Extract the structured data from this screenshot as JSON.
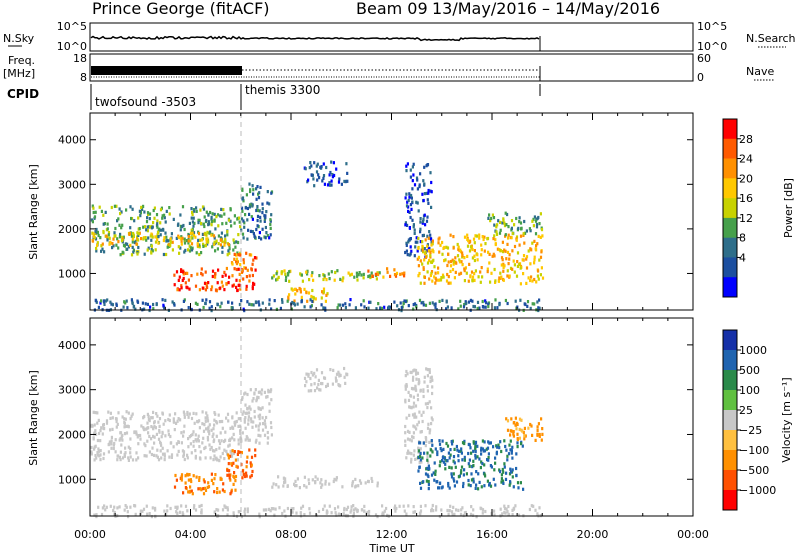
{
  "header": {
    "station": "Prince George (fitACF)",
    "beam": "Beam 09",
    "date_range": "13/May/2016 – 14/May/2016"
  },
  "noise_panel": {
    "left_label": "N.Sky",
    "right_label": "N.Search",
    "left_ticks": [
      "10^5",
      "10^0"
    ],
    "right_ticks": [
      "10^5",
      "10^0"
    ]
  },
  "freq_panel": {
    "left_label_1": "Freq.",
    "left_label_2": "[MHz]",
    "right_label": "Nave",
    "left_ticks": [
      "18",
      "8"
    ],
    "right_ticks": [
      "60",
      "0"
    ]
  },
  "cpid_panel": {
    "label": "CPID",
    "segments": [
      {
        "name": "twofsound -3503",
        "start_hour": 0,
        "end_hour": 6
      },
      {
        "name": "themis 3300",
        "start_hour": 6,
        "end_hour": 18
      }
    ]
  },
  "power_colorbar": {
    "label": "Power [dB]",
    "ticks": [
      "28",
      "24",
      "20",
      "16",
      "12",
      "8",
      "4"
    ],
    "colors": [
      "#ff0000",
      "#ff5a00",
      "#ff9000",
      "#ffc800",
      "#c8d200",
      "#46a04b",
      "#2e6e8a",
      "#1c4fa0",
      "#0000ff"
    ]
  },
  "velocity_colorbar": {
    "label": "Velocity [m s⁻¹]",
    "ticks": [
      "1000",
      "500",
      "100",
      "25",
      "−25",
      "−100",
      "−500",
      "−1000"
    ],
    "colors": [
      "#1530a8",
      "#1f64b0",
      "#2a8a4a",
      "#60c040",
      "#c8c8c8",
      "#ffc040",
      "#ff9000",
      "#ff5000",
      "#ff0000"
    ]
  },
  "chart_data": {
    "type": "heatmap",
    "xlabel": "Time UT",
    "ylabel": "Slant Range [km]",
    "x_ticks": [
      "00:00",
      "04:00",
      "08:00",
      "12:00",
      "16:00",
      "20:00",
      "00:00"
    ],
    "y_ticks": [
      "1000",
      "2000",
      "3000",
      "4000"
    ],
    "xlim_hours": [
      0,
      24
    ],
    "ylim_km": [
      180,
      4600
    ],
    "data_end_hour": 18,
    "mode_change_hour": 6,
    "power_regions": [
      {
        "t0": 0.0,
        "t1": 6.0,
        "r0": 1450,
        "r1": 2550,
        "db": 12
      },
      {
        "t0": 0.0,
        "t1": 5.5,
        "r0": 1650,
        "r1": 1950,
        "db": 20
      },
      {
        "t0": 3.3,
        "t1": 6.6,
        "r0": 650,
        "r1": 1150,
        "db": 28
      },
      {
        "t0": 5.4,
        "t1": 6.6,
        "r0": 1100,
        "r1": 1500,
        "db": 24
      },
      {
        "t0": 6.0,
        "t1": 7.2,
        "r0": 1800,
        "r1": 3050,
        "db": 8
      },
      {
        "t0": 7.2,
        "t1": 11.5,
        "r0": 850,
        "r1": 1100,
        "db": 16
      },
      {
        "t0": 7.8,
        "t1": 9.5,
        "r0": 400,
        "r1": 700,
        "db": 20
      },
      {
        "t0": 8.5,
        "t1": 10.2,
        "r0": 3000,
        "r1": 3550,
        "db": 6
      },
      {
        "t0": 11.0,
        "t1": 12.5,
        "r0": 950,
        "r1": 1150,
        "db": 24
      },
      {
        "t0": 12.5,
        "t1": 13.6,
        "r0": 1400,
        "r1": 3500,
        "db": 6
      },
      {
        "t0": 13.0,
        "t1": 18.0,
        "r0": 800,
        "r1": 1900,
        "db": 20
      },
      {
        "t0": 15.8,
        "t1": 18.0,
        "r0": 1900,
        "r1": 2400,
        "db": 12
      },
      {
        "t0": 0.0,
        "t1": 18.0,
        "r0": 200,
        "r1": 450,
        "db": 8
      }
    ],
    "velocity_regions": [
      {
        "t0": 0.0,
        "t1": 6.0,
        "r0": 1450,
        "r1": 2550,
        "v": 0
      },
      {
        "t0": 3.3,
        "t1": 5.8,
        "r0": 700,
        "r1": 1150,
        "v": -300
      },
      {
        "t0": 5.4,
        "t1": 6.6,
        "r0": 1050,
        "r1": 1700,
        "v": -500
      },
      {
        "t0": 6.0,
        "t1": 7.2,
        "r0": 1800,
        "r1": 3050,
        "v": 0
      },
      {
        "t0": 7.2,
        "t1": 11.5,
        "r0": 850,
        "r1": 1100,
        "v": 0
      },
      {
        "t0": 8.5,
        "t1": 10.2,
        "r0": 3000,
        "r1": 3550,
        "v": 0
      },
      {
        "t0": 12.5,
        "t1": 13.6,
        "r0": 1400,
        "r1": 3500,
        "v": 0
      },
      {
        "t0": 13.0,
        "t1": 17.2,
        "r0": 800,
        "r1": 1900,
        "v": 300
      },
      {
        "t0": 16.5,
        "t1": 18.0,
        "r0": 1900,
        "r1": 2400,
        "v": -200
      },
      {
        "t0": 0.0,
        "t1": 18.0,
        "r0": 200,
        "r1": 450,
        "v": 0
      }
    ]
  }
}
